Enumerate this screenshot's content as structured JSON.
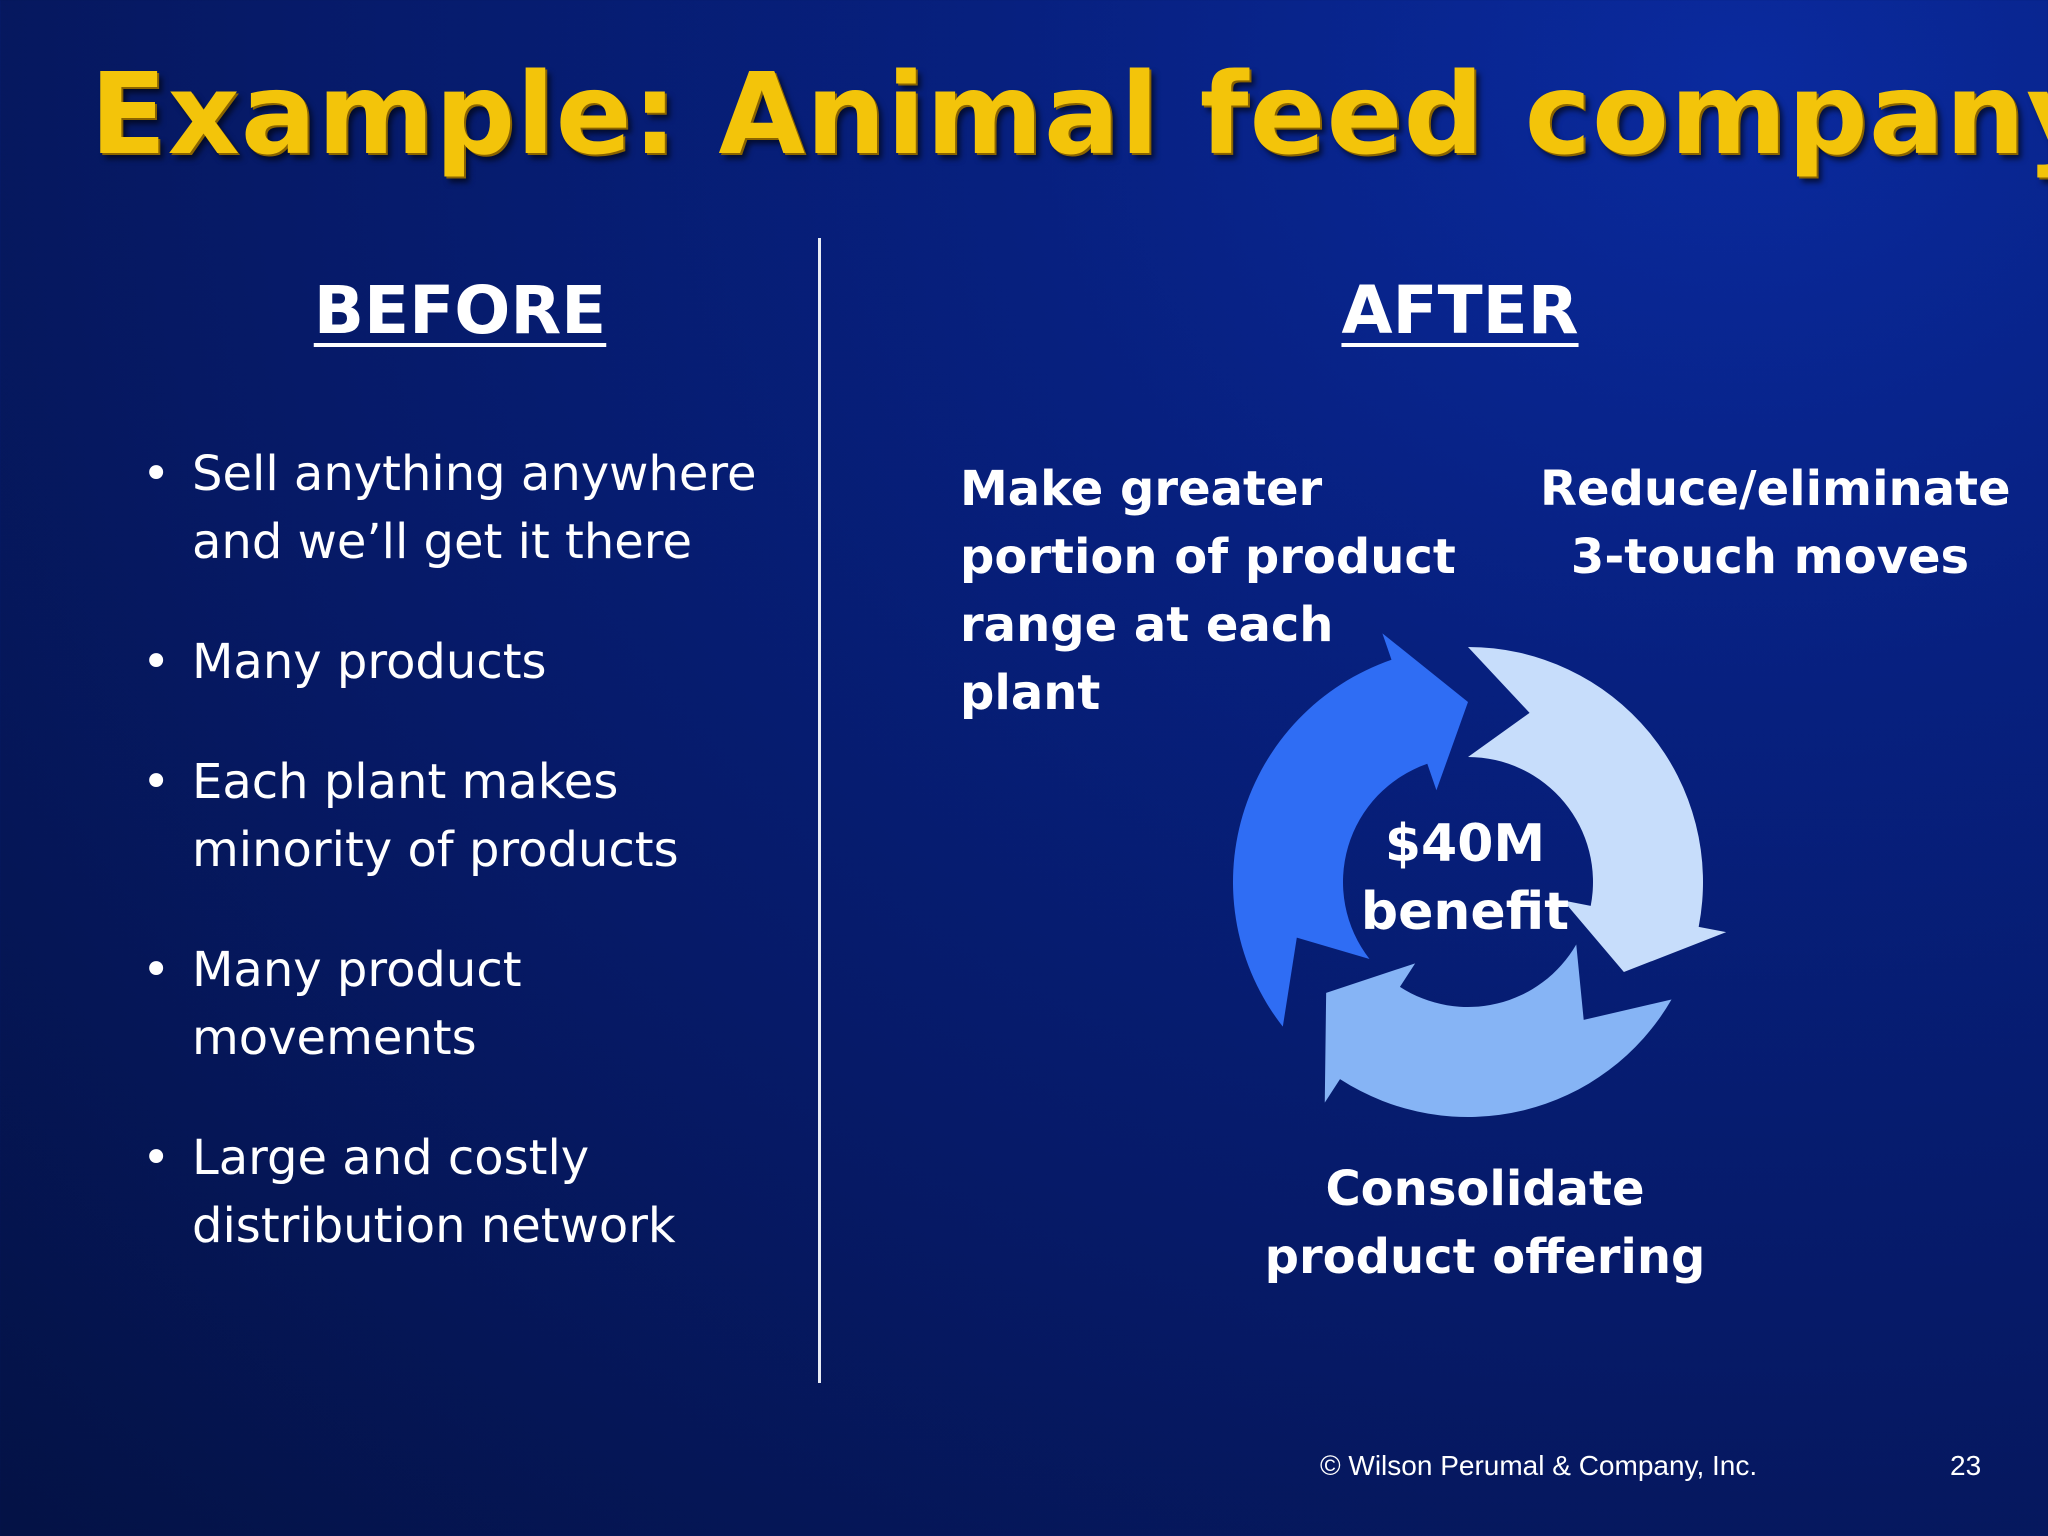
{
  "slide": {
    "title": "Example:  Animal feed company",
    "page_number": "23",
    "copyright": "© Wilson Perumal & Company, Inc."
  },
  "before": {
    "heading": "BEFORE",
    "bullets": [
      "Sell anything anywhere and we’ll get it there",
      "Many products",
      "Each plant makes minority of products",
      "Many product movements",
      "Large and costly distribution network"
    ]
  },
  "after": {
    "heading": "AFTER",
    "cycle": {
      "center": [
        "$40M",
        "benefit"
      ],
      "labels": {
        "top_left": "Make greater portion of product range at each plant",
        "top_right": "Reduce/eliminate 3-touch moves",
        "bottom": "Consolidate product offering"
      },
      "segment_colors": [
        "#2f6df4",
        "#c7ddfb",
        "#86b4f5"
      ]
    }
  }
}
